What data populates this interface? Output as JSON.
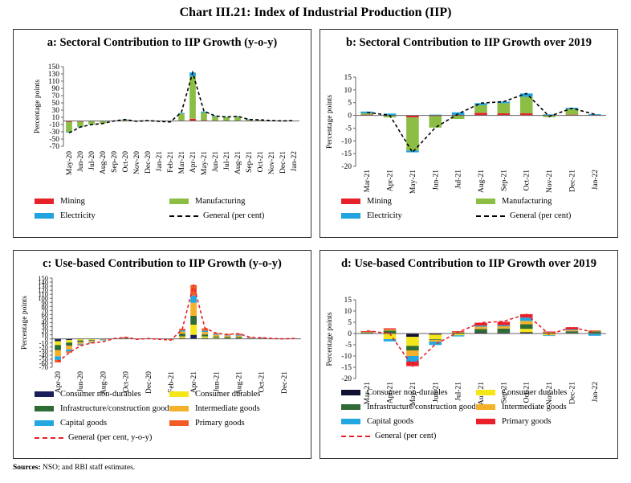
{
  "title": "Chart III.21: Index of Industrial Production (IIP)",
  "sources": {
    "label": "Sources:",
    "text": "NSO; and RBI staff estimates."
  },
  "chart_data": [
    {
      "id": "a",
      "type": "bar",
      "stacked": true,
      "title": "a: Sectoral Contribution to IIP Growth (y-o-y)",
      "ylabel": "Percentage points",
      "ylim": [
        -70,
        150
      ],
      "ytick_values": [
        -70,
        -50,
        -30,
        -10,
        10,
        30,
        50,
        70,
        90,
        110,
        130,
        150
      ],
      "categories": [
        "May-20",
        "Jun-20",
        "Jul-20",
        "Aug-20",
        "Sep-20",
        "Oct-20",
        "Nov-20",
        "Dec-20",
        "Jan-21",
        "Feb-21",
        "Mar-21",
        "Apr-21",
        "May-21",
        "Jun-21",
        "Jul-21",
        "Aug-21",
        "Sep-21",
        "Oct-21",
        "Nov-21",
        "Dec-21",
        "Jan-22"
      ],
      "xtick_labels": [
        "May-20",
        "Jun-20",
        "Jul-20",
        "Aug-20",
        "Sep-20",
        "Oct-20",
        "Nov-20",
        "Dec-20",
        "Jan-21",
        "Feb-21",
        "Mar-21",
        "Apr-21",
        "May-21",
        "Jun-21",
        "Jul-21",
        "Aug-21",
        "Sep-21",
        "Oct-21",
        "Nov-21",
        "Dec-21",
        "Jan-22"
      ],
      "series": [
        {
          "name": "Mining",
          "color": "#e8202a",
          "values": [
            -3,
            -2,
            -1,
            -1,
            0,
            0,
            0,
            0,
            0,
            0,
            1,
            6,
            2,
            1,
            1,
            1,
            1,
            0,
            0,
            0,
            0
          ]
        },
        {
          "name": "Manufacturing",
          "color": "#8cbd45",
          "values": [
            -27,
            -14,
            -8,
            -6,
            0,
            3,
            -1,
            1,
            -1,
            -2,
            19,
            117,
            21,
            11,
            9,
            10,
            3,
            3,
            0,
            0,
            0
          ]
        },
        {
          "name": "Electricity",
          "color": "#20a3de",
          "values": [
            -2,
            -1,
            -1,
            0,
            0,
            1,
            0,
            0,
            0,
            0,
            2,
            11,
            3,
            2,
            1,
            2,
            1,
            0,
            0,
            0,
            0
          ]
        }
      ],
      "line": {
        "name": "General (per cent)",
        "color": "#000000",
        "values": [
          -33,
          -17,
          -10,
          -7,
          0,
          4,
          -1,
          1,
          -1,
          -3,
          24,
          134,
          27,
          14,
          11,
          13,
          4,
          3,
          1,
          0,
          1
        ]
      },
      "legend": [
        "Mining",
        "Manufacturing",
        "Electricity",
        "General (per cent)"
      ]
    },
    {
      "id": "b",
      "type": "bar",
      "stacked": true,
      "title": "b: Sectoral Contribution to IIP Growth over 2019",
      "ylabel": "Percentage points",
      "ylim": [
        -20,
        15
      ],
      "ytick_values": [
        -20,
        -15,
        -10,
        -5,
        0,
        5,
        10,
        15
      ],
      "categories": [
        "Mar-21",
        "Apr-21",
        "May-21",
        "Jun-21",
        "Jul-21",
        "Aug-21",
        "Sep-21",
        "Oct-21",
        "Nov-21",
        "Dec-21",
        "Jan-22"
      ],
      "xtick_labels": [
        "Mar-21",
        "Apr-21",
        "May-21",
        "Jun-21",
        "Jul-21",
        "Aug-21",
        "Sep-21",
        "Oct-21",
        "Nov-21",
        "Dec-21",
        "Jan-22"
      ],
      "series": [
        {
          "name": "Mining",
          "color": "#e8202a",
          "values": [
            0.3,
            0,
            -0.8,
            -0.3,
            0.2,
            1.0,
            0.8,
            0.8,
            0.1,
            0.3,
            0.2
          ]
        },
        {
          "name": "Manufacturing",
          "color": "#8cbd45",
          "values": [
            0.5,
            -0.8,
            -13,
            -4.5,
            -1.4,
            3,
            4,
            6.5,
            -0.7,
            2.2,
            0
          ]
        },
        {
          "name": "Electricity",
          "color": "#20a3de",
          "values": [
            0.7,
            0.7,
            -0.7,
            0.3,
            1.0,
            0.8,
            0.6,
            1.3,
            0.3,
            0.5,
            0.3
          ]
        }
      ],
      "line": {
        "name": "General (per cent)",
        "color": "#000000",
        "values": [
          1.2,
          0,
          -14.5,
          -4.8,
          0.6,
          4.8,
          5.4,
          8.6,
          -0.4,
          2.8,
          0.4
        ]
      },
      "legend": [
        "Mining",
        "Manufacturing",
        "Electricity",
        "General (per cent)"
      ]
    },
    {
      "id": "c",
      "type": "bar",
      "stacked": true,
      "title": "c: Use-based Contribution to IIP Growth (y-o-y)",
      "ylabel": "Percentage points",
      "ylim": [
        -70,
        150
      ],
      "ytick_values": [
        -70,
        -60,
        -50,
        -40,
        -30,
        -20,
        -10,
        0,
        10,
        20,
        30,
        40,
        50,
        60,
        70,
        80,
        90,
        100,
        110,
        120,
        130,
        140,
        150
      ],
      "categories": [
        "Apr-20",
        "May-20",
        "Jun-20",
        "Jul-20",
        "Aug-20",
        "Sep-20",
        "Oct-20",
        "Nov-20",
        "Dec-20",
        "Jan-21",
        "Feb-21",
        "Mar-21",
        "Apr-21",
        "May-21",
        "Jun-21",
        "Jul-21",
        "Aug-21",
        "Sep-21",
        "Oct-21",
        "Nov-21",
        "Dec-21",
        "Jan-22"
      ],
      "xtick_labels": [
        "Apr-20",
        "",
        "Jun-20",
        "",
        "Aug-20",
        "",
        "Oct-20",
        "",
        "Dec-20",
        "",
        "Feb-21",
        "",
        "Apr-21",
        "",
        "Jun-21",
        "",
        "Aug-21",
        "",
        "Oct-21",
        "",
        "Dec-21",
        ""
      ],
      "series": [
        {
          "name": "Consumer non-durables",
          "color": "#1a1f5c",
          "values": [
            -6,
            -3,
            -1,
            -1,
            0,
            0,
            0,
            0,
            0,
            0,
            0,
            2,
            10,
            2,
            1,
            1,
            1,
            0,
            0,
            0,
            0,
            0
          ]
        },
        {
          "name": "Consumer durables",
          "color": "#f4e619",
          "values": [
            -9,
            -6,
            -3,
            -2,
            -1,
            0,
            1,
            0,
            0,
            0,
            0,
            4,
            25,
            4,
            2,
            1,
            1,
            0,
            0,
            0,
            0,
            0
          ]
        },
        {
          "name": "Infrastructure/construction goods",
          "color": "#2e6b35",
          "values": [
            -13,
            -8,
            -4,
            -2,
            -1,
            0,
            1,
            0,
            0,
            0,
            -1,
            7,
            22,
            5,
            3,
            3,
            3,
            1,
            1,
            0,
            0,
            0
          ]
        },
        {
          "name": "Intermediate goods",
          "color": "#f5b12b",
          "values": [
            -15,
            -9,
            -4,
            -3,
            -1,
            0,
            1,
            0,
            0,
            0,
            -1,
            5,
            32,
            6,
            4,
            3,
            3,
            1,
            1,
            0,
            0,
            0
          ]
        },
        {
          "name": "Capital goods",
          "color": "#23a7e0",
          "values": [
            -9,
            -5,
            -2,
            -2,
            -1,
            0,
            1,
            0,
            0,
            0,
            0,
            3,
            18,
            3,
            2,
            1,
            2,
            1,
            1,
            0,
            0,
            0
          ]
        },
        {
          "name": "Primary goods",
          "color": "#f25a26",
          "values": [
            -6,
            -3,
            -2,
            -1,
            0,
            1,
            1,
            -1,
            1,
            -1,
            -1,
            4,
            26,
            6,
            2,
            3,
            3,
            1,
            1,
            1,
            0,
            1
          ]
        }
      ],
      "line": {
        "name": "General (per cent, y-o-y)",
        "color": "#e8202a",
        "values": [
          -57,
          -34,
          -17,
          -10,
          -7,
          1,
          4,
          -1,
          1,
          -1,
          -3,
          24,
          134,
          27,
          14,
          11,
          13,
          4,
          3,
          1,
          0,
          1
        ]
      },
      "legend": [
        "Consumer non-durables",
        "Consumer durables",
        "Infrastructure/construction  goods",
        "Intermediate goods",
        "Capital goods",
        "Primary goods",
        "General (per cent, y-o-y)"
      ]
    },
    {
      "id": "d",
      "type": "bar",
      "stacked": true,
      "title": "d: Use-based Contribution to IIP Growth over 2019",
      "ylabel": "Percentage points",
      "ylim": [
        -20,
        15
      ],
      "ytick_values": [
        -20,
        -15,
        -10,
        -5,
        0,
        5,
        10,
        15
      ],
      "categories": [
        "Mar-21",
        "Apr-21",
        "May-21",
        "Jun-21",
        "Jul-21",
        "Aug-21",
        "Sep-21",
        "Oct-21",
        "Nov-21",
        "Dec-21",
        "Jan-22"
      ],
      "xtick_labels": [
        "Mar-21",
        "Apr-21",
        "May-21",
        "Jun-21",
        "Jul-21",
        "Aug-21",
        "Sep-21",
        "Oct-21",
        "Nov-21",
        "Dec-21",
        "Jan-22"
      ],
      "series": [
        {
          "name": "Consumer non-durables",
          "color": "#111133",
          "values": [
            0.2,
            0.3,
            -1.5,
            -0.5,
            0.2,
            0.5,
            0.4,
            0.6,
            0.2,
            0.3,
            0.2
          ]
        },
        {
          "name": "Consumer durables",
          "color": "#f4e619",
          "values": [
            0,
            -2.5,
            -4,
            -2,
            -0.8,
            0,
            0,
            1.5,
            -0.8,
            0,
            -0.2
          ]
        },
        {
          "name": "Infrastructure/construction goods",
          "color": "#2e6b35",
          "values": [
            0.3,
            1,
            -2,
            -0.3,
            0.3,
            1.5,
            1.8,
            2,
            0.3,
            0.7,
            0.7
          ]
        },
        {
          "name": "Intermediate goods",
          "color": "#f5b12b",
          "values": [
            0.3,
            0.5,
            -2.5,
            -0.8,
            0.1,
            1,
            1,
            1.5,
            0.1,
            0.5,
            0.3
          ]
        },
        {
          "name": "Capital goods",
          "color": "#23a7e0",
          "values": [
            0,
            -1,
            -2.5,
            -1.5,
            -0.5,
            0.5,
            0.5,
            1.5,
            -0.3,
            0.3,
            -0.8
          ]
        },
        {
          "name": "Primary goods",
          "color": "#e8202a",
          "values": [
            0.3,
            0.5,
            -2,
            0.2,
            0.4,
            1.3,
            1.5,
            1.5,
            0.3,
            1,
            0.2
          ]
        }
      ],
      "line": {
        "name": "General (per cent)",
        "color": "#e8202a",
        "values": [
          1.2,
          0,
          -14.5,
          -4.8,
          0.6,
          4.8,
          5.4,
          8.6,
          -0.4,
          2.8,
          0.4
        ]
      },
      "legend": [
        "Consumer non-durables",
        "Consumer durables",
        "Infrastructure/construction  goods",
        "Intermediate goods",
        "Capital goods",
        "Primary goods",
        "General (per cent)"
      ]
    }
  ]
}
